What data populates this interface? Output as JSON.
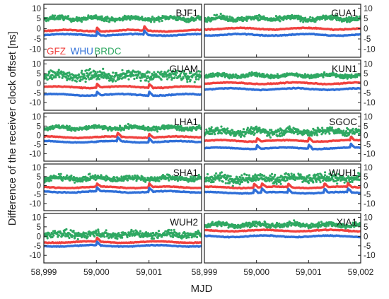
{
  "chart_data": {
    "type": "scatter",
    "ylabel": "Difference of the receiver clock offset [ns]",
    "xlabel": "MJD",
    "legend": [
      {
        "name": "GFZ",
        "color": "#f0413e"
      },
      {
        "name": "WHU",
        "color": "#2f6fd8"
      },
      {
        "name": "BRDC",
        "color": "#2fa862"
      }
    ],
    "legend_placement": "inside first panel, bottom-left",
    "xlim": [
      58999,
      59002
    ],
    "ylim": [
      -14,
      12
    ],
    "yticks": [
      10,
      5,
      0,
      -5,
      -10
    ],
    "ytick_labels": [
      "10",
      "5",
      "0",
      "-5",
      "-10"
    ],
    "xticks": [
      58999,
      59000,
      59001,
      59002
    ],
    "xtick_labels": [
      "58,999",
      "59,000",
      "59,001",
      "59,002"
    ],
    "grid": false,
    "panels": [
      {
        "station": "BJF1",
        "column": "left",
        "BRDC": 5,
        "BRDC_spread": 1.3,
        "GFZ": -1,
        "WHU": -3,
        "jumps": [
          59000.0,
          59000.9
        ]
      },
      {
        "station": "GUAM",
        "column": "left",
        "BRDC": 4,
        "BRDC_spread": 3.0,
        "GFZ": -2,
        "WHU": -6,
        "jumps": [
          59000.0,
          59001.0
        ]
      },
      {
        "station": "LHA1",
        "column": "left",
        "BRDC": 4,
        "BRDC_spread": 1.3,
        "GFZ": -1,
        "WHU": -3.5,
        "jumps": [
          59000.4,
          59001.0
        ]
      },
      {
        "station": "SHA1",
        "column": "left",
        "BRDC": 4,
        "BRDC_spread": 1.8,
        "GFZ": -1,
        "WHU": -3.5,
        "jumps": [
          59000.0,
          59001.0
        ]
      },
      {
        "station": "WUH2",
        "column": "left",
        "BRDC": 1,
        "BRDC_spread": 2.2,
        "GFZ": -3,
        "WHU": -5,
        "jumps": [
          59000.0
        ]
      },
      {
        "station": "GUA1",
        "column": "right",
        "BRDC": 5,
        "BRDC_spread": 1.4,
        "GFZ": 0,
        "WHU": -3,
        "jumps": []
      },
      {
        "station": "KUN1",
        "column": "right",
        "BRDC": 4,
        "BRDC_spread": 1.2,
        "GFZ": 0,
        "WHU": -3,
        "jumps": []
      },
      {
        "station": "SGOC",
        "column": "right",
        "BRDC": 2,
        "BRDC_spread": 2.4,
        "GFZ": -3,
        "WHU": -7,
        "jumps": [
          59000.0,
          59001.0,
          59001.8
        ]
      },
      {
        "station": "WUH1",
        "column": "right",
        "BRDC": 4,
        "BRDC_spread": 3.0,
        "GFZ": -1,
        "WHU": -4,
        "jumps": [
          58999.95,
          59000.1,
          59000.6,
          59001.3,
          59001.75
        ]
      },
      {
        "station": "XIA1",
        "column": "right",
        "BRDC": 6,
        "BRDC_spread": 1.5,
        "GFZ": 3,
        "WHU": 0,
        "jumps": []
      }
    ]
  }
}
